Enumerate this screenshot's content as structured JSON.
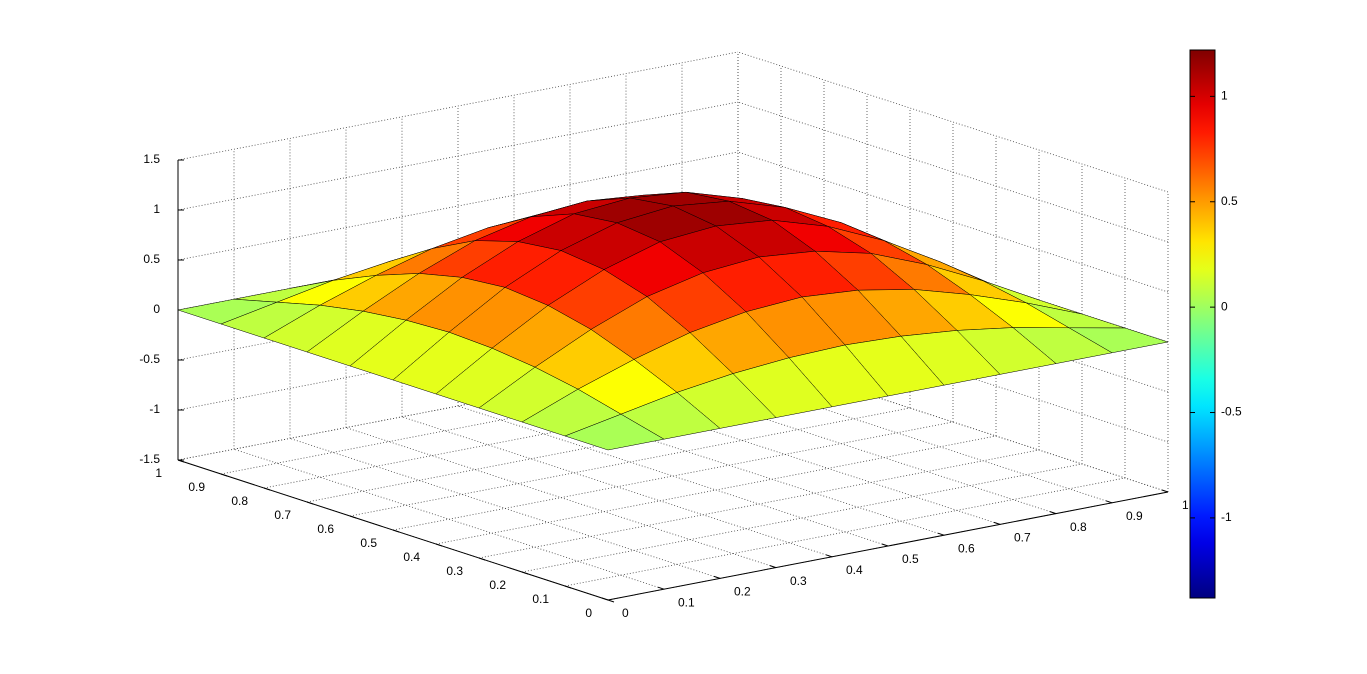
{
  "chart_data": {
    "type": "surface",
    "x": [
      0,
      0.1,
      0.2,
      0.3,
      0.4,
      0.5,
      0.6,
      0.7,
      0.8,
      0.9,
      1
    ],
    "y": [
      0,
      0.1,
      0.2,
      0.3,
      0.4,
      0.5,
      0.6,
      0.7,
      0.8,
      0.9,
      1
    ],
    "z": [
      [
        0,
        0,
        0,
        0,
        0,
        0,
        0,
        0,
        0,
        0,
        0
      ],
      [
        0,
        0.11,
        0.22,
        0.3,
        0.35,
        0.37,
        0.35,
        0.3,
        0.22,
        0.11,
        0
      ],
      [
        0,
        0.22,
        0.41,
        0.57,
        0.67,
        0.71,
        0.67,
        0.57,
        0.41,
        0.22,
        0
      ],
      [
        0,
        0.3,
        0.57,
        0.79,
        0.92,
        0.97,
        0.92,
        0.79,
        0.57,
        0.3,
        0
      ],
      [
        0,
        0.35,
        0.67,
        0.92,
        1.09,
        1.14,
        1.09,
        0.92,
        0.67,
        0.35,
        0
      ],
      [
        0,
        0.37,
        0.71,
        0.97,
        1.14,
        1.2,
        1.14,
        0.97,
        0.71,
        0.37,
        0
      ],
      [
        0,
        0.35,
        0.67,
        0.92,
        1.09,
        1.14,
        1.09,
        0.92,
        0.67,
        0.35,
        0
      ],
      [
        0,
        0.3,
        0.57,
        0.79,
        0.92,
        0.97,
        0.92,
        0.79,
        0.57,
        0.3,
        0
      ],
      [
        0,
        0.22,
        0.41,
        0.57,
        0.67,
        0.71,
        0.67,
        0.57,
        0.41,
        0.22,
        0
      ],
      [
        0,
        0.11,
        0.22,
        0.3,
        0.35,
        0.37,
        0.35,
        0.3,
        0.22,
        0.11,
        0
      ],
      [
        0,
        0,
        0,
        0,
        0,
        0,
        0,
        0,
        0,
        0,
        0
      ]
    ],
    "xlim": [
      0,
      1
    ],
    "ylim": [
      0,
      1
    ],
    "zlim": [
      -1.5,
      1.5
    ],
    "xticks": [
      0,
      0.1,
      0.2,
      0.3,
      0.4,
      0.5,
      0.6,
      0.7,
      0.8,
      0.9,
      1
    ],
    "yticks": [
      0,
      0.1,
      0.2,
      0.3,
      0.4,
      0.5,
      0.6,
      0.7,
      0.8,
      0.9,
      1
    ],
    "zticks": [
      -1.5,
      -1,
      -0.5,
      0,
      0.5,
      1,
      1.5
    ],
    "colormap": "jet",
    "clim": [
      -1.38,
      1.22
    ],
    "colorbar_ticks": [
      -1,
      -0.5,
      0,
      0.5,
      1
    ],
    "grid": true
  }
}
